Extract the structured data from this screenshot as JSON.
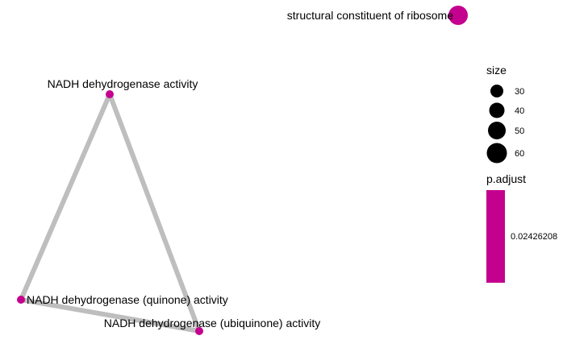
{
  "chart_data": {
    "type": "network",
    "nodes": [
      {
        "id": "n1",
        "label": "structural constituent of ribosome",
        "size": 60
      },
      {
        "id": "n2",
        "label": "NADH dehydrogenase activity",
        "size": 22
      },
      {
        "id": "n3",
        "label": "NADH dehydrogenase (quinone) activity",
        "size": 22
      },
      {
        "id": "n4",
        "label": "NADH dehydrogenase (ubiquinone) activity",
        "size": 22
      }
    ],
    "edges": [
      {
        "from": "n2",
        "to": "n3"
      },
      {
        "from": "n2",
        "to": "n4"
      },
      {
        "from": "n3",
        "to": "n4"
      }
    ],
    "node_color": "#c4008f",
    "edge_color": "#bebebe",
    "legend_size": {
      "title": "size",
      "entries": [
        "30",
        "40",
        "50",
        "60"
      ]
    },
    "legend_color": {
      "title": "p.adjust",
      "tick_label": "0.02426208",
      "color": "#c4008f"
    }
  }
}
